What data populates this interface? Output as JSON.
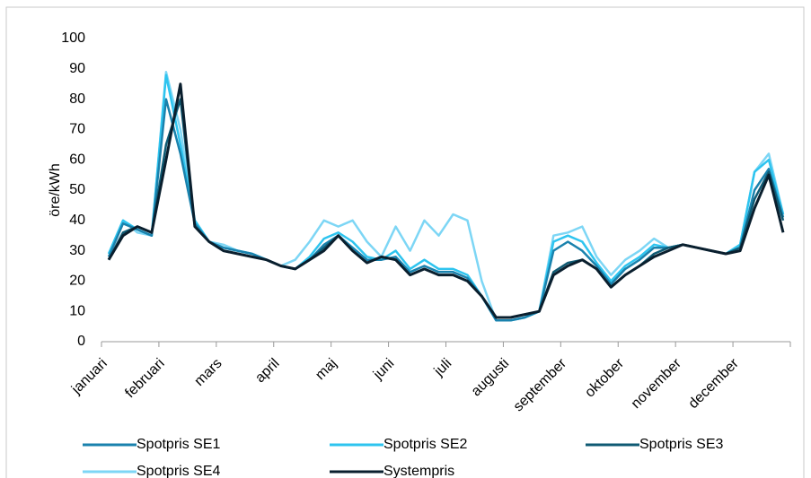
{
  "chart_data": {
    "type": "line",
    "y_label": "öre/kWh",
    "categories": [
      "januari",
      null,
      null,
      null,
      "februari",
      null,
      null,
      null,
      "mars",
      null,
      null,
      null,
      "april",
      null,
      null,
      null,
      "maj",
      null,
      null,
      null,
      "juni",
      null,
      null,
      null,
      "juli",
      null,
      null,
      null,
      "augusti",
      null,
      null,
      null,
      "september",
      null,
      null,
      null,
      "oktober",
      null,
      null,
      null,
      "november",
      null,
      null,
      null,
      "december",
      null,
      null,
      null
    ],
    "series": [
      {
        "name": "Spotpris SE1",
        "color": "#1a82ad",
        "values": [
          28,
          39,
          37,
          35,
          80,
          62,
          39,
          33,
          31,
          30,
          29,
          27,
          25,
          24,
          27,
          32,
          35,
          31,
          27,
          27,
          28,
          23,
          25,
          23,
          23,
          21,
          15,
          7,
          7,
          8,
          10,
          30,
          33,
          30,
          25,
          19,
          24,
          27,
          31,
          31,
          32,
          31,
          30,
          29,
          31,
          50,
          57,
          41
        ]
      },
      {
        "name": "Spotpris SE2",
        "color": "#2ec4ef",
        "values": [
          29,
          40,
          37,
          35,
          88,
          65,
          40,
          33,
          31,
          30,
          29,
          27,
          25,
          24,
          28,
          34,
          36,
          33,
          28,
          27,
          30,
          24,
          27,
          24,
          24,
          22,
          15,
          7,
          7,
          8,
          10,
          33,
          35,
          33,
          26,
          20,
          25,
          28,
          32,
          31,
          32,
          31,
          30,
          29,
          32,
          56,
          60,
          42
        ]
      },
      {
        "name": "Spotpris SE3",
        "color": "#0f5a73",
        "values": [
          27,
          36,
          38,
          36,
          65,
          80,
          38,
          33,
          30,
          29,
          28,
          27,
          25,
          24,
          27,
          31,
          35,
          30,
          26,
          28,
          27,
          22,
          24,
          22,
          22,
          20,
          15,
          8,
          8,
          9,
          10,
          23,
          26,
          27,
          24,
          18,
          22,
          25,
          29,
          31,
          32,
          31,
          30,
          29,
          31,
          47,
          56,
          40
        ]
      },
      {
        "name": "Spotpris SE4",
        "color": "#7dd6f5",
        "values": [
          29,
          40,
          36,
          35,
          89,
          70,
          40,
          33,
          32,
          30,
          29,
          27,
          25,
          27,
          33,
          40,
          38,
          40,
          33,
          28,
          38,
          30,
          40,
          35,
          42,
          40,
          20,
          7,
          7,
          8,
          10,
          35,
          36,
          38,
          28,
          22,
          27,
          30,
          34,
          31,
          32,
          31,
          30,
          29,
          32,
          56,
          62,
          42
        ]
      },
      {
        "name": "Systempris",
        "color": "#0a1f2e",
        "values": [
          27,
          35,
          38,
          36,
          60,
          85,
          38,
          33,
          30,
          29,
          28,
          27,
          25,
          24,
          27,
          30,
          35,
          30,
          26,
          28,
          27,
          22,
          24,
          22,
          22,
          20,
          15,
          8,
          8,
          9,
          10,
          22,
          25,
          27,
          24,
          18,
          22,
          25,
          28,
          30,
          32,
          31,
          30,
          29,
          30,
          44,
          55,
          36
        ]
      }
    ],
    "ylim": [
      0,
      100
    ],
    "yticks": [
      0,
      10,
      20,
      30,
      40,
      50,
      60,
      70,
      80,
      90,
      100
    ]
  }
}
